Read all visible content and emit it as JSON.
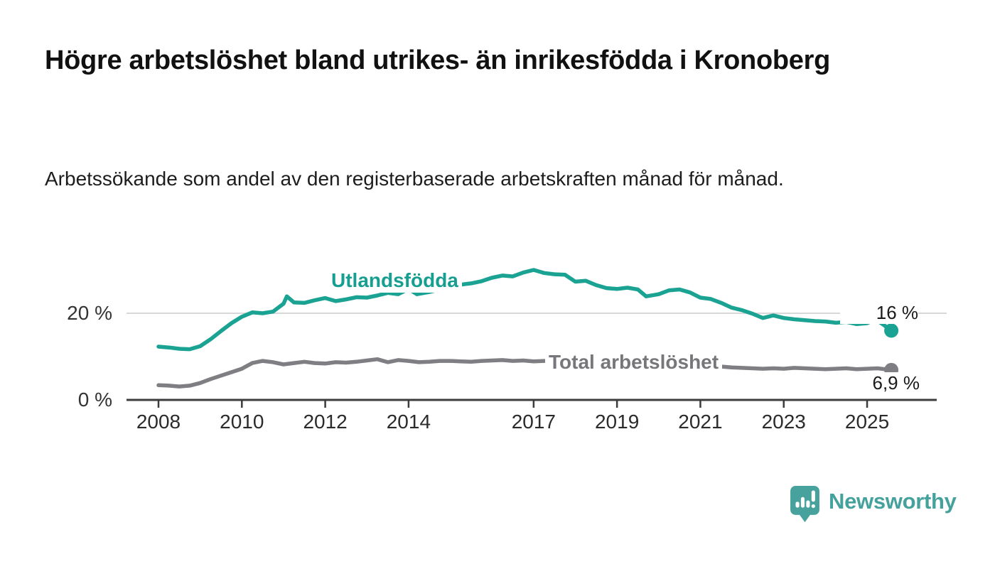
{
  "header": {
    "title": "Högre arbetslöshet bland utrikes- än inrikesfödda i Kronoberg",
    "subtitle": "Arbetssökande som andel av den registerbaserade arbetskraften månad för månad."
  },
  "footer": {
    "logo_text": "Newsworthy",
    "logo_icon": "newsworthy-speech-bubble-bar-chart-icon",
    "brand_color": "#47a29d"
  },
  "colors": {
    "background": "#ffffff",
    "grid": "#d8d8d8",
    "axis": "#3c3c3c",
    "title_text": "#111111",
    "tick_text": "#2b2b2b"
  },
  "chart_data": {
    "type": "line",
    "title": "Högre arbetslöshet bland utrikes- än inrikesfödda i Kronoberg",
    "subtitle": "Arbetssökande som andel av den registerbaserade arbetskraften månad för månad.",
    "unit": "%",
    "grid": "horizontal-only",
    "legend_position": "inline-labels",
    "x_axis": {
      "ticks": [
        2008,
        2010,
        2012,
        2014,
        2017,
        2019,
        2021,
        2023,
        2025
      ],
      "range": [
        2007.3,
        2026.7
      ]
    },
    "y_axis": {
      "ticks": [
        {
          "value": 0,
          "label": "0 %"
        },
        {
          "value": 20,
          "label": "20 %"
        }
      ],
      "range": [
        0,
        33
      ]
    },
    "series": [
      {
        "name": "Utlandsfödda",
        "color": "#1aa293",
        "end_label": "16 %",
        "last_value": 16,
        "points": [
          [
            2008.0,
            12.3
          ],
          [
            2008.25,
            12.1
          ],
          [
            2008.5,
            11.8
          ],
          [
            2008.75,
            11.7
          ],
          [
            2009.0,
            12.4
          ],
          [
            2009.25,
            14.0
          ],
          [
            2009.5,
            15.9
          ],
          [
            2009.75,
            17.7
          ],
          [
            2010.0,
            19.2
          ],
          [
            2010.25,
            20.2
          ],
          [
            2010.5,
            20.0
          ],
          [
            2010.75,
            20.4
          ],
          [
            2011.0,
            22.2
          ],
          [
            2011.08,
            23.9
          ],
          [
            2011.25,
            22.5
          ],
          [
            2011.5,
            22.4
          ],
          [
            2011.75,
            23.0
          ],
          [
            2012.0,
            23.5
          ],
          [
            2012.25,
            22.8
          ],
          [
            2012.5,
            23.2
          ],
          [
            2012.75,
            23.7
          ],
          [
            2013.0,
            23.6
          ],
          [
            2013.25,
            24.1
          ],
          [
            2013.5,
            24.7
          ],
          [
            2013.75,
            24.4
          ],
          [
            2014.0,
            25.6
          ],
          [
            2014.2,
            24.4
          ],
          [
            2014.5,
            24.9
          ],
          [
            2014.75,
            25.5
          ],
          [
            2015.0,
            26.1
          ],
          [
            2015.25,
            26.6
          ],
          [
            2015.5,
            26.9
          ],
          [
            2015.75,
            27.4
          ],
          [
            2016.0,
            28.2
          ],
          [
            2016.25,
            28.7
          ],
          [
            2016.5,
            28.5
          ],
          [
            2016.75,
            29.4
          ],
          [
            2017.0,
            30.0
          ],
          [
            2017.25,
            29.3
          ],
          [
            2017.5,
            29.0
          ],
          [
            2017.75,
            28.9
          ],
          [
            2018.0,
            27.3
          ],
          [
            2018.25,
            27.5
          ],
          [
            2018.5,
            26.5
          ],
          [
            2018.75,
            25.8
          ],
          [
            2019.0,
            25.6
          ],
          [
            2019.25,
            25.9
          ],
          [
            2019.5,
            25.5
          ],
          [
            2019.7,
            23.9
          ],
          [
            2020.0,
            24.4
          ],
          [
            2020.25,
            25.3
          ],
          [
            2020.5,
            25.5
          ],
          [
            2020.75,
            24.8
          ],
          [
            2021.0,
            23.6
          ],
          [
            2021.25,
            23.3
          ],
          [
            2021.5,
            22.4
          ],
          [
            2021.75,
            21.3
          ],
          [
            2022.0,
            20.7
          ],
          [
            2022.25,
            19.9
          ],
          [
            2022.5,
            18.9
          ],
          [
            2022.75,
            19.5
          ],
          [
            2023.0,
            18.9
          ],
          [
            2023.25,
            18.6
          ],
          [
            2023.5,
            18.4
          ],
          [
            2023.75,
            18.2
          ],
          [
            2024.0,
            18.1
          ],
          [
            2024.25,
            17.8
          ],
          [
            2024.5,
            18.0
          ],
          [
            2024.75,
            17.5
          ],
          [
            2025.0,
            17.7
          ],
          [
            2025.2,
            18.6
          ],
          [
            2025.4,
            17.3
          ],
          [
            2025.58,
            16.0
          ]
        ]
      },
      {
        "name": "Total arbetslöshet",
        "color": "#7e7e83",
        "end_label": "6,9 %",
        "last_value": 6.9,
        "points": [
          [
            2008.0,
            3.4
          ],
          [
            2008.25,
            3.3
          ],
          [
            2008.5,
            3.1
          ],
          [
            2008.75,
            3.3
          ],
          [
            2009.0,
            3.9
          ],
          [
            2009.25,
            4.8
          ],
          [
            2009.5,
            5.6
          ],
          [
            2009.75,
            6.4
          ],
          [
            2010.0,
            7.2
          ],
          [
            2010.25,
            8.5
          ],
          [
            2010.5,
            9.0
          ],
          [
            2010.75,
            8.7
          ],
          [
            2011.0,
            8.2
          ],
          [
            2011.25,
            8.5
          ],
          [
            2011.5,
            8.8
          ],
          [
            2011.75,
            8.5
          ],
          [
            2012.0,
            8.4
          ],
          [
            2012.25,
            8.7
          ],
          [
            2012.5,
            8.6
          ],
          [
            2012.75,
            8.8
          ],
          [
            2013.0,
            9.1
          ],
          [
            2013.25,
            9.4
          ],
          [
            2013.5,
            8.7
          ],
          [
            2013.75,
            9.2
          ],
          [
            2014.0,
            9.0
          ],
          [
            2014.25,
            8.7
          ],
          [
            2014.5,
            8.8
          ],
          [
            2014.75,
            9.0
          ],
          [
            2015.0,
            9.0
          ],
          [
            2015.25,
            8.9
          ],
          [
            2015.5,
            8.8
          ],
          [
            2015.75,
            9.0
          ],
          [
            2016.0,
            9.1
          ],
          [
            2016.25,
            9.2
          ],
          [
            2016.5,
            9.0
          ],
          [
            2016.75,
            9.1
          ],
          [
            2017.0,
            8.9
          ],
          [
            2017.25,
            9.0
          ],
          [
            2017.5,
            9.0
          ],
          [
            2017.75,
            8.9
          ],
          [
            2018.0,
            8.7
          ],
          [
            2018.25,
            8.6
          ],
          [
            2018.5,
            8.4
          ],
          [
            2018.75,
            8.3
          ],
          [
            2019.0,
            8.1
          ],
          [
            2019.25,
            8.0
          ],
          [
            2019.5,
            7.9
          ],
          [
            2019.75,
            7.8
          ],
          [
            2020.0,
            8.0
          ],
          [
            2020.25,
            8.6
          ],
          [
            2020.5,
            8.8
          ],
          [
            2020.75,
            8.5
          ],
          [
            2021.0,
            8.2
          ],
          [
            2021.25,
            7.9
          ],
          [
            2021.5,
            7.7
          ],
          [
            2021.75,
            7.5
          ],
          [
            2022.0,
            7.4
          ],
          [
            2022.25,
            7.3
          ],
          [
            2022.5,
            7.2
          ],
          [
            2022.75,
            7.3
          ],
          [
            2023.0,
            7.2
          ],
          [
            2023.25,
            7.4
          ],
          [
            2023.5,
            7.3
          ],
          [
            2023.75,
            7.2
          ],
          [
            2024.0,
            7.1
          ],
          [
            2024.25,
            7.2
          ],
          [
            2024.5,
            7.3
          ],
          [
            2024.75,
            7.1
          ],
          [
            2025.0,
            7.2
          ],
          [
            2025.25,
            7.3
          ],
          [
            2025.58,
            6.9
          ]
        ]
      }
    ]
  }
}
